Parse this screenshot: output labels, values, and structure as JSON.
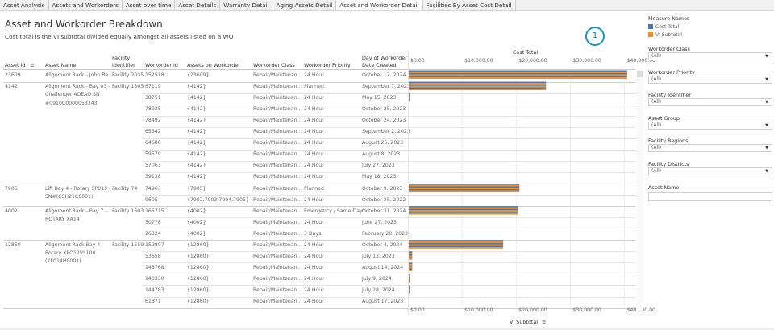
{
  "tabs": [
    {
      "label": "Asset Analysis"
    },
    {
      "label": "Assets and Workorders"
    },
    {
      "label": "Asset over time"
    },
    {
      "label": "Asset Details"
    },
    {
      "label": "Warranty Detail"
    },
    {
      "label": "Aging Assets Detail"
    },
    {
      "label": "Asset and Workorder Detail"
    },
    {
      "label": "Facilities By Asset Cost Detail"
    }
  ],
  "active_tab": 6,
  "header": {
    "title": "Asset and Workorder Breakdown",
    "subtitle": "Cost total is the VI subtotal divided equally amongst all assets listed on a WO",
    "badge": "1"
  },
  "columns": {
    "asset_id": "Asset Id",
    "asset_name": "Asset Name",
    "facility_identifier_1": "Facility",
    "facility_identifier_2": "Identifier",
    "workorder_id": "Workorder Id",
    "assets_on_workorder": "Assets on Workorder",
    "workorder_class": "Workorder Class",
    "workorder_priority": "Workorder Priority",
    "day_created_1": "Day of Workorder",
    "day_created_2": "Date Created"
  },
  "rows": [
    {
      "asset_id": "23609",
      "asset_name_lines": [
        "Alignment Rack - John Be.."
      ],
      "facility": "Facility 2035",
      "workorder_id": "152518",
      "assets": "{23609}",
      "class": "Repair/Maintenan..",
      "priority": "24 Hour",
      "date": "October 17, 2024"
    },
    {
      "asset_id": "4142",
      "asset_name_lines": [
        "Alignment Rack - Bay 03 -",
        "Challenger 4OEAO SN",
        "#0910C0000053343"
      ],
      "facility": "Facility 1365",
      "workorder_id": "67119",
      "assets": "{4142}",
      "class": "Repair/Maintenan..",
      "priority": "Planned",
      "date": "September 7, 2023"
    },
    {
      "workorder_id": "38751",
      "assets": "{4142}",
      "class": "Repair/Maintenan..",
      "priority": "24 Hour",
      "date": "May 15, 2023"
    },
    {
      "workorder_id": "78925",
      "assets": "{4142}",
      "class": "Repair/Maintenan..",
      "priority": "24 Hour",
      "date": "October 25, 2023"
    },
    {
      "workorder_id": "78492",
      "assets": "{4142}",
      "class": "Repair/Maintenan..",
      "priority": "24 Hour",
      "date": "October 24, 2023"
    },
    {
      "workorder_id": "65342",
      "assets": "{4142}",
      "class": "Repair/Maintenan..",
      "priority": "24 Hour",
      "date": "September 2, 2023"
    },
    {
      "workorder_id": "64686",
      "assets": "{4142}",
      "class": "Repair/Maintenan..",
      "priority": "24 Hour",
      "date": "August 25, 2023"
    },
    {
      "workorder_id": "59579",
      "assets": "{4142}",
      "class": "Repair/Maintenan..",
      "priority": "24 Hour",
      "date": "August 8, 2023"
    },
    {
      "workorder_id": "57063",
      "assets": "{4142}",
      "class": "Repair/Maintenan..",
      "priority": "24 Hour",
      "date": "July 27, 2023"
    },
    {
      "workorder_id": "39138",
      "assets": "{4142}",
      "class": "Repair/Maintenan..",
      "priority": "24 Hour",
      "date": "May 18, 2023"
    },
    {
      "asset_id": "7905",
      "asset_name_lines": [
        "Lift Bay 4 - Rotary SP010 -",
        "SN#(CSH21C0001)"
      ],
      "facility": "Facility 74",
      "workorder_id": "74963",
      "assets": "{7905}",
      "class": "Repair/Maintenan..",
      "priority": "Planned",
      "date": "October 9, 2023"
    },
    {
      "workorder_id": "9605",
      "assets": "{7902,7903,7904,7905}",
      "class": "Repair/Maintenan..",
      "priority": "24 Hour",
      "date": "October 25, 2022"
    },
    {
      "asset_id": "4002",
      "asset_name_lines": [
        "Alignment Rack - Bay 7 -",
        "ROTARY XA14"
      ],
      "facility": "Facility 1603",
      "workorder_id": "165715",
      "assets": "{4002}",
      "class": "Repair/Maintenan..",
      "priority": "Emergency / Same Day",
      "date": "October 31, 2024"
    },
    {
      "workorder_id": "50778",
      "assets": "{4002}",
      "class": "Repair/Maintenan..",
      "priority": "24 Hour",
      "date": "June 27, 2023"
    },
    {
      "workorder_id": "26324",
      "assets": "{4002}",
      "class": "Repair/Maintenan..",
      "priority": "3 Days",
      "date": "February 20, 2023"
    },
    {
      "asset_id": "12860",
      "asset_name_lines": [
        "Alignment Rack Bay 4 -",
        "Rotary XPO12VL100",
        "(KF014H0001)"
      ],
      "facility": "Facility 1559",
      "workorder_id": "159807",
      "assets": "{12860}",
      "class": "Repair/Maintenan..",
      "priority": "24 Hour",
      "date": "October 4, 2024"
    },
    {
      "workorder_id": "53658",
      "assets": "{12860}",
      "class": "Repair/Maintenan..",
      "priority": "24 Hour",
      "date": "July 13, 2023"
    },
    {
      "workorder_id": "148768",
      "assets": "{12860}",
      "class": "Repair/Maintenan..",
      "priority": "24 Hour",
      "date": "August 14, 2024"
    },
    {
      "workorder_id": "140330",
      "assets": "{12860}",
      "class": "Repair/Maintenan..",
      "priority": "24 Hour",
      "date": "July 9, 2024"
    },
    {
      "workorder_id": "144783",
      "assets": "{12860}",
      "class": "Repair/Maintenan..",
      "priority": "24 Hour",
      "date": "July 28, 2024"
    },
    {
      "workorder_id": "61871",
      "assets": "{12860}",
      "class": "Repair/Maintenan..",
      "priority": "24 Hour",
      "date": "August 17, 2023"
    }
  ],
  "chart_data": {
    "type": "bar",
    "orientation": "horizontal",
    "title": "Cost Total",
    "xlabel": "VI Subtotal",
    "xlim": [
      0,
      42000
    ],
    "ticks": [
      "$0.00",
      "$10,000.00",
      "$20,000.00",
      "$30,000.00",
      "$40,000.00"
    ],
    "tick_values": [
      0,
      10000,
      20000,
      30000,
      40000
    ],
    "series": [
      {
        "name": "Cost Total",
        "color": "#4e79a7",
        "values": [
          40500,
          25500,
          250,
          0,
          0,
          0,
          0,
          0,
          0,
          0,
          20600,
          0,
          20300,
          0,
          0,
          17600,
          800,
          800,
          400,
          250,
          0
        ]
      },
      {
        "name": "VI Subtotal",
        "color": "#f28e2b",
        "values": [
          40500,
          25500,
          250,
          0,
          0,
          0,
          0,
          0,
          0,
          0,
          20600,
          0,
          20300,
          0,
          0,
          17600,
          800,
          800,
          400,
          250,
          0
        ]
      }
    ]
  },
  "panel": {
    "legend_title": "Measure Names",
    "legend": [
      {
        "label": "Cost Total",
        "color": "#4e79a7"
      },
      {
        "label": "VI Subtotal",
        "color": "#f28e2b"
      }
    ],
    "filters": [
      {
        "label": "Workorder Class",
        "value": "(All)"
      },
      {
        "label": "Workorder Priority",
        "value": "(All)"
      },
      {
        "label": "Facility Identifier",
        "value": "(All)"
      },
      {
        "label": "Asset Group",
        "value": "(All)"
      },
      {
        "label": "Facility Regions",
        "value": "(All)"
      },
      {
        "label": "Facility Districts",
        "value": "(All)"
      }
    ],
    "asset_name_label": "Asset Name",
    "asset_name_value": ""
  },
  "icons": {
    "sort": "sort-icon",
    "dropdown": "chevron-down-icon"
  }
}
